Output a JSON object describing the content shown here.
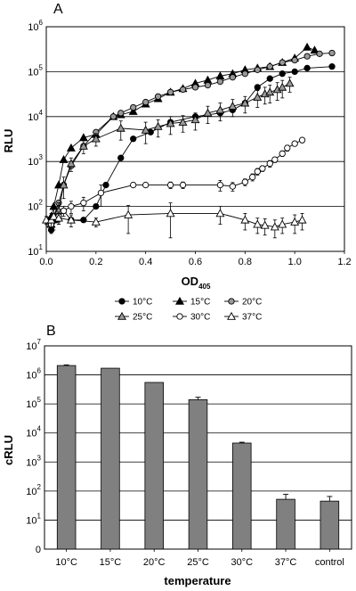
{
  "chart_data": [
    {
      "panel": "A",
      "type": "scatter",
      "xlabel": "OD",
      "xlabel_sub": "405",
      "ylabel": "RLU",
      "xlim": [
        0.0,
        1.2
      ],
      "ylim": [
        10,
        1000000
      ],
      "y_scale": "log",
      "x_ticks": [
        "0.0",
        "0.2",
        "0.4",
        "0.6",
        "0.8",
        "1.0",
        "1.2"
      ],
      "x_tick_values": [
        0,
        0.2,
        0.4,
        0.6,
        0.8,
        1.0,
        1.2
      ],
      "y_ticks": [
        {
          "base": "10",
          "exp": "1",
          "value": 10
        },
        {
          "base": "10",
          "exp": "2",
          "value": 100
        },
        {
          "base": "10",
          "exp": "3",
          "value": 1000
        },
        {
          "base": "10",
          "exp": "4",
          "value": 10000
        },
        {
          "base": "10",
          "exp": "5",
          "value": 100000
        },
        {
          "base": "10",
          "exp": "6",
          "value": 1000000
        }
      ],
      "grid": "horizontal",
      "legend_position": "bottom",
      "series": [
        {
          "name": "10°C",
          "marker": "circle",
          "fill": "#000000",
          "stroke": "#000000",
          "x": [
            0.01,
            0.02,
            0.04,
            0.07,
            0.1,
            0.15,
            0.2,
            0.24,
            0.3,
            0.35,
            0.42,
            0.5,
            0.6,
            0.7,
            0.75,
            0.8,
            0.85,
            0.9,
            0.95,
            1.0,
            1.05,
            1.15
          ],
          "y": [
            50,
            30,
            50,
            80,
            50,
            50,
            100,
            300,
            1200,
            3200,
            4500,
            7500,
            10000,
            12000,
            14000,
            20000,
            45000,
            70000,
            90000,
            100000,
            120000,
            130000
          ]
        },
        {
          "name": "15°C",
          "marker": "triangle",
          "fill": "#000000",
          "stroke": "#000000",
          "x": [
            0.02,
            0.03,
            0.05,
            0.07,
            0.1,
            0.15,
            0.2,
            0.27,
            0.3,
            0.35,
            0.4,
            0.45,
            0.5,
            0.55,
            0.6,
            0.65,
            0.7,
            0.75,
            0.8,
            0.85,
            0.9,
            0.95,
            1.0,
            1.05,
            1.08
          ],
          "y": [
            60,
            100,
            300,
            1100,
            2000,
            3400,
            4000,
            10000,
            11000,
            13000,
            19000,
            25000,
            35000,
            42000,
            55000,
            65000,
            80000,
            90000,
            110000,
            120000,
            130000,
            160000,
            200000,
            350000,
            300000
          ]
        },
        {
          "name": "20°C",
          "marker": "circle",
          "fill": "#999999",
          "stroke": "#000000",
          "x": [
            0.01,
            0.03,
            0.05,
            0.07,
            0.1,
            0.15,
            0.2,
            0.27,
            0.3,
            0.35,
            0.4,
            0.45,
            0.5,
            0.55,
            0.6,
            0.65,
            0.7,
            0.75,
            0.8,
            0.85,
            0.9,
            0.95,
            1.0,
            1.05,
            1.1,
            1.15
          ],
          "y": [
            40,
            60,
            120,
            300,
            800,
            2200,
            4500,
            10000,
            12000,
            16000,
            21000,
            28000,
            35000,
            40000,
            45000,
            50000,
            60000,
            75000,
            90000,
            110000,
            130000,
            160000,
            180000,
            220000,
            250000,
            260000
          ]
        },
        {
          "name": "25°C",
          "marker": "triangle",
          "fill": "#999999",
          "stroke": "#000000",
          "x": [
            0.02,
            0.05,
            0.07,
            0.1,
            0.15,
            0.2,
            0.3,
            0.4,
            0.45,
            0.5,
            0.55,
            0.6,
            0.65,
            0.7,
            0.75,
            0.8,
            0.85,
            0.88,
            0.9,
            0.93,
            0.95,
            0.98
          ],
          "y": [
            40,
            80,
            300,
            900,
            2200,
            3200,
            5500,
            5000,
            6000,
            7000,
            7500,
            8500,
            12000,
            14000,
            17000,
            20000,
            27000,
            32000,
            35000,
            40000,
            45000,
            55000
          ],
          "err": [
            15,
            40,
            150,
            300,
            700,
            1000,
            2500,
            2500,
            2500,
            3000,
            3000,
            3500,
            5000,
            6000,
            7000,
            8000,
            11000,
            13000,
            15000,
            17000,
            19000,
            20000
          ]
        },
        {
          "name": "30°C",
          "marker": "circle",
          "fill": "#ffffff",
          "stroke": "#000000",
          "x": [
            0.02,
            0.05,
            0.07,
            0.1,
            0.15,
            0.22,
            0.35,
            0.4,
            0.5,
            0.55,
            0.7,
            0.75,
            0.8,
            0.83,
            0.85,
            0.87,
            0.9,
            0.92,
            0.95,
            0.97,
            1.0,
            1.03
          ],
          "y": [
            40,
            60,
            80,
            100,
            120,
            200,
            300,
            300,
            300,
            300,
            300,
            280,
            350,
            450,
            600,
            700,
            900,
            1100,
            1500,
            2000,
            2500,
            3000
          ],
          "err": [
            10,
            15,
            20,
            30,
            40,
            100,
            30,
            30,
            50,
            50,
            80,
            60,
            60,
            80,
            100,
            100,
            150,
            150,
            200,
            300,
            300,
            400
          ]
        },
        {
          "name": "37°C",
          "marker": "triangle",
          "fill": "#ffffff",
          "stroke": "#000000",
          "x": [
            0.0,
            0.02,
            0.03,
            0.05,
            0.1,
            0.2,
            0.33,
            0.5,
            0.7,
            0.8,
            0.85,
            0.88,
            0.92,
            0.95,
            1.0,
            1.03
          ],
          "y": [
            50,
            50,
            60,
            55,
            50,
            45,
            65,
            70,
            70,
            50,
            40,
            38,
            35,
            40,
            45,
            50
          ],
          "err": [
            10,
            20,
            30,
            15,
            15,
            10,
            40,
            50,
            30,
            20,
            15,
            15,
            15,
            15,
            20,
            20
          ]
        }
      ]
    },
    {
      "panel": "B",
      "type": "bar",
      "xlabel": "temperature",
      "ylabel": "cRLU",
      "y_scale": "log",
      "ylim": [
        1,
        10000000
      ],
      "y_ticks": [
        {
          "base": "0",
          "exp": "",
          "value": 1
        },
        {
          "base": "10",
          "exp": "1",
          "value": 10
        },
        {
          "base": "10",
          "exp": "2",
          "value": 100
        },
        {
          "base": "10",
          "exp": "3",
          "value": 1000
        },
        {
          "base": "10",
          "exp": "4",
          "value": 10000
        },
        {
          "base": "10",
          "exp": "5",
          "value": 100000
        },
        {
          "base": "10",
          "exp": "6",
          "value": 1000000
        },
        {
          "base": "10",
          "exp": "7",
          "value": 10000000
        }
      ],
      "grid": "horizontal",
      "categories": [
        "10°C",
        "15°C",
        "20°C",
        "25°C",
        "30°C",
        "37°C",
        "control"
      ],
      "values": [
        2100000,
        1700000,
        550000,
        140000,
        4500,
        52,
        45
      ],
      "errors": [
        120000,
        0,
        0,
        30000,
        300,
        25,
        20
      ],
      "bar_color": "#808080"
    }
  ]
}
